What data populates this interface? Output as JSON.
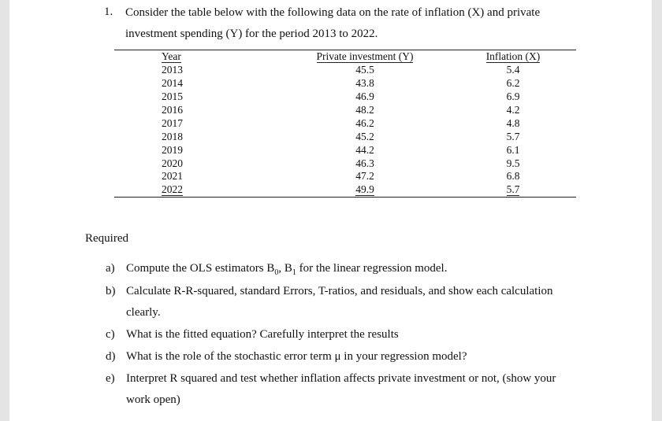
{
  "question": {
    "number": "1.",
    "line1": "Consider the table below with the following data on the rate of inflation (X) and private",
    "line2": "investment spending (Y) for the period 2013 to 2022."
  },
  "table": {
    "headers": [
      "Year",
      "Private investment (Y)",
      "Inflation (X)"
    ],
    "rows": [
      [
        "2013",
        "45.5",
        "5.4"
      ],
      [
        "2014",
        "43.8",
        "6.2"
      ],
      [
        "2015",
        "46.9",
        "6.9"
      ],
      [
        "2016",
        "48.2",
        "4.2"
      ],
      [
        "2017",
        "46.2",
        "4.8"
      ],
      [
        "2018",
        "45.2",
        "5.7"
      ],
      [
        "2019",
        "44.2",
        "6.1"
      ],
      [
        "2020",
        "46.3",
        "9.5"
      ],
      [
        "2021",
        "47.2",
        "6.8"
      ],
      [
        "2022",
        "49.9",
        "5.7"
      ]
    ]
  },
  "required": {
    "heading": "Required",
    "items": [
      {
        "label": "a)",
        "text_pre": "Compute the OLS estimators B",
        "sub0": "0",
        "mid": ", B",
        "sub1": "1",
        "text_post": " for the linear regression model."
      },
      {
        "label": "b)",
        "text": "Calculate R-R-squared, standard Errors, T-ratios, and residuals, and show each calculation",
        "cont": "clearly."
      },
      {
        "label": "c)",
        "text": "What is the fitted equation? Carefully interpret the results"
      },
      {
        "label": "d)",
        "text": "What is the role of the stochastic error term μ in your regression model?"
      },
      {
        "label": "e)",
        "text": "Interpret R squared and test whether inflation affects private investment or not, (show your",
        "cont": "work open)"
      }
    ]
  }
}
